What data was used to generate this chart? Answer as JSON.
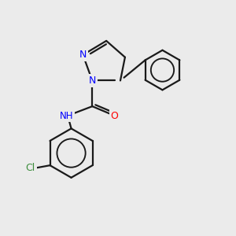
{
  "bg_color": "#ebebeb",
  "bond_color": "#1a1a1a",
  "N_color": "#0000ff",
  "O_color": "#ff0000",
  "Cl_color": "#3a8c3a",
  "lw": 1.6,
  "figsize": [
    3.0,
    3.0
  ],
  "dpi": 100,
  "xlim": [
    0,
    10
  ],
  "ylim": [
    0,
    10
  ]
}
